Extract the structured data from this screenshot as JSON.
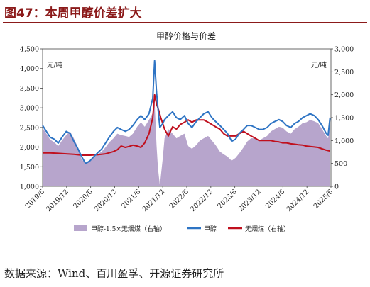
{
  "figure": {
    "title": "图47：本周甲醇价差扩大",
    "source": "数据来源：Wind、百川盈孚、开源证券研究所"
  },
  "colors": {
    "title": "#8b1a1a",
    "spread": "#b7a5cc",
    "methanol": "#2e74c4",
    "coal": "#c0101e"
  },
  "chart_data": {
    "type": "line",
    "title": "甲醇价格与价差",
    "y_left": {
      "min": 1000,
      "max": 4500,
      "step": 500,
      "unit_label": "元/吨",
      "ticks": [
        "1,000",
        "1,500",
        "2,000",
        "2,500",
        "3,000",
        "3,500",
        "4,000",
        "4,500"
      ]
    },
    "y_right": {
      "min": 0,
      "max": 3000,
      "step": 500,
      "unit_label": "元/吨",
      "ticks": [
        "0",
        "500",
        "1,000",
        "1,500",
        "2,000",
        "2,500",
        "3,000"
      ]
    },
    "x_ticks": [
      "2019/6",
      "2019/12",
      "2020/6",
      "2020/12",
      "2021/6",
      "2021/12",
      "2022/6",
      "2022/12",
      "2023/6",
      "2023/12",
      "2024/6",
      "2024/12",
      "2025/6"
    ],
    "legend_position": "bottom",
    "series": [
      {
        "name": "甲醇-1.5×无烟煤（右轴）",
        "type": "area",
        "axis": "right",
        "points": [
          [
            2019.42,
            1280
          ],
          [
            2019.5,
            1150
          ],
          [
            2019.58,
            1020
          ],
          [
            2019.67,
            960
          ],
          [
            2019.75,
            880
          ],
          [
            2019.83,
            1000
          ],
          [
            2019.92,
            1120
          ],
          [
            2020.0,
            1200
          ],
          [
            2020.08,
            1050
          ],
          [
            2020.17,
            850
          ],
          [
            2020.25,
            580
          ],
          [
            2020.33,
            520
          ],
          [
            2020.42,
            560
          ],
          [
            2020.5,
            620
          ],
          [
            2020.58,
            700
          ],
          [
            2020.67,
            760
          ],
          [
            2020.75,
            850
          ],
          [
            2020.83,
            960
          ],
          [
            2020.92,
            1050
          ],
          [
            2021.0,
            1150
          ],
          [
            2021.08,
            1120
          ],
          [
            2021.17,
            1100
          ],
          [
            2021.25,
            1080
          ],
          [
            2021.33,
            1150
          ],
          [
            2021.42,
            1300
          ],
          [
            2021.5,
            1400
          ],
          [
            2021.58,
            1300
          ],
          [
            2021.67,
            1450
          ],
          [
            2021.75,
            1600
          ],
          [
            2021.79,
            1850
          ],
          [
            2021.83,
            900
          ],
          [
            2021.86,
            400
          ],
          [
            2021.9,
            20
          ],
          [
            2021.96,
            600
          ],
          [
            2022.0,
            1050
          ],
          [
            2022.08,
            1250
          ],
          [
            2022.17,
            1150
          ],
          [
            2022.25,
            1050
          ],
          [
            2022.33,
            1100
          ],
          [
            2022.42,
            1150
          ],
          [
            2022.5,
            880
          ],
          [
            2022.58,
            820
          ],
          [
            2022.67,
            900
          ],
          [
            2022.75,
            1000
          ],
          [
            2022.83,
            1050
          ],
          [
            2022.92,
            1100
          ],
          [
            2023.0,
            1000
          ],
          [
            2023.08,
            900
          ],
          [
            2023.17,
            760
          ],
          [
            2023.25,
            700
          ],
          [
            2023.33,
            650
          ],
          [
            2023.42,
            560
          ],
          [
            2023.5,
            620
          ],
          [
            2023.58,
            720
          ],
          [
            2023.67,
            850
          ],
          [
            2023.75,
            980
          ],
          [
            2023.83,
            1050
          ],
          [
            2023.92,
            1050
          ],
          [
            2024.0,
            1000
          ],
          [
            2024.08,
            1050
          ],
          [
            2024.17,
            1100
          ],
          [
            2024.25,
            1200
          ],
          [
            2024.33,
            1250
          ],
          [
            2024.42,
            1300
          ],
          [
            2024.5,
            1280
          ],
          [
            2024.58,
            1200
          ],
          [
            2024.67,
            1150
          ],
          [
            2024.75,
            1250
          ],
          [
            2024.83,
            1300
          ],
          [
            2024.92,
            1380
          ],
          [
            2025.0,
            1400
          ],
          [
            2025.08,
            1450
          ],
          [
            2025.17,
            1420
          ],
          [
            2025.25,
            1380
          ],
          [
            2025.33,
            1250
          ],
          [
            2025.42,
            1100
          ],
          [
            2025.46,
            1050
          ],
          [
            2025.5,
            1380
          ]
        ]
      },
      {
        "name": "甲醇",
        "type": "line",
        "axis": "left",
        "points": [
          [
            2019.42,
            2550
          ],
          [
            2019.5,
            2400
          ],
          [
            2019.58,
            2250
          ],
          [
            2019.67,
            2200
          ],
          [
            2019.75,
            2100
          ],
          [
            2019.83,
            2250
          ],
          [
            2019.92,
            2400
          ],
          [
            2020.0,
            2350
          ],
          [
            2020.08,
            2150
          ],
          [
            2020.17,
            1950
          ],
          [
            2020.25,
            1750
          ],
          [
            2020.33,
            1580
          ],
          [
            2020.42,
            1650
          ],
          [
            2020.5,
            1750
          ],
          [
            2020.58,
            1850
          ],
          [
            2020.67,
            1950
          ],
          [
            2020.75,
            2100
          ],
          [
            2020.83,
            2250
          ],
          [
            2020.92,
            2400
          ],
          [
            2021.0,
            2500
          ],
          [
            2021.08,
            2450
          ],
          [
            2021.17,
            2400
          ],
          [
            2021.25,
            2450
          ],
          [
            2021.33,
            2550
          ],
          [
            2021.42,
            2700
          ],
          [
            2021.5,
            2800
          ],
          [
            2021.58,
            2700
          ],
          [
            2021.67,
            2850
          ],
          [
            2021.75,
            3250
          ],
          [
            2021.79,
            4200
          ],
          [
            2021.83,
            3400
          ],
          [
            2021.86,
            3000
          ],
          [
            2021.9,
            2500
          ],
          [
            2021.96,
            2600
          ],
          [
            2022.0,
            2700
          ],
          [
            2022.08,
            2800
          ],
          [
            2022.17,
            2900
          ],
          [
            2022.25,
            2750
          ],
          [
            2022.33,
            2700
          ],
          [
            2022.42,
            2800
          ],
          [
            2022.5,
            2600
          ],
          [
            2022.58,
            2500
          ],
          [
            2022.67,
            2650
          ],
          [
            2022.75,
            2750
          ],
          [
            2022.83,
            2850
          ],
          [
            2022.92,
            2900
          ],
          [
            2023.0,
            2750
          ],
          [
            2023.08,
            2650
          ],
          [
            2023.17,
            2550
          ],
          [
            2023.25,
            2450
          ],
          [
            2023.33,
            2350
          ],
          [
            2023.42,
            2150
          ],
          [
            2023.5,
            2200
          ],
          [
            2023.58,
            2350
          ],
          [
            2023.67,
            2450
          ],
          [
            2023.75,
            2550
          ],
          [
            2023.83,
            2550
          ],
          [
            2023.92,
            2500
          ],
          [
            2024.0,
            2450
          ],
          [
            2024.08,
            2450
          ],
          [
            2024.17,
            2500
          ],
          [
            2024.25,
            2600
          ],
          [
            2024.33,
            2650
          ],
          [
            2024.42,
            2700
          ],
          [
            2024.5,
            2650
          ],
          [
            2024.58,
            2550
          ],
          [
            2024.67,
            2500
          ],
          [
            2024.75,
            2600
          ],
          [
            2024.83,
            2650
          ],
          [
            2024.92,
            2750
          ],
          [
            2025.0,
            2800
          ],
          [
            2025.08,
            2850
          ],
          [
            2025.17,
            2800
          ],
          [
            2025.25,
            2700
          ],
          [
            2025.33,
            2550
          ],
          [
            2025.42,
            2350
          ],
          [
            2025.46,
            2300
          ],
          [
            2025.5,
            2750
          ]
        ]
      },
      {
        "name": "无烟煤（右轴）",
        "type": "line",
        "axis": "right",
        "points": [
          [
            2019.42,
            730
          ],
          [
            2019.58,
            730
          ],
          [
            2019.75,
            720
          ],
          [
            2019.92,
            710
          ],
          [
            2020.08,
            700
          ],
          [
            2020.25,
            680
          ],
          [
            2020.42,
            680
          ],
          [
            2020.58,
            690
          ],
          [
            2020.75,
            710
          ],
          [
            2020.92,
            760
          ],
          [
            2021.0,
            800
          ],
          [
            2021.08,
            880
          ],
          [
            2021.17,
            850
          ],
          [
            2021.25,
            870
          ],
          [
            2021.33,
            900
          ],
          [
            2021.42,
            880
          ],
          [
            2021.5,
            850
          ],
          [
            2021.58,
            950
          ],
          [
            2021.67,
            1150
          ],
          [
            2021.75,
            1500
          ],
          [
            2021.79,
            2000
          ],
          [
            2021.83,
            1800
          ],
          [
            2021.88,
            1650
          ],
          [
            2021.92,
            1500
          ],
          [
            2022.0,
            1250
          ],
          [
            2022.08,
            1100
          ],
          [
            2022.17,
            1300
          ],
          [
            2022.25,
            1250
          ],
          [
            2022.33,
            1350
          ],
          [
            2022.42,
            1400
          ],
          [
            2022.5,
            1450
          ],
          [
            2022.58,
            1400
          ],
          [
            2022.67,
            1450
          ],
          [
            2022.75,
            1450
          ],
          [
            2022.83,
            1450
          ],
          [
            2022.92,
            1400
          ],
          [
            2023.0,
            1350
          ],
          [
            2023.08,
            1300
          ],
          [
            2023.17,
            1250
          ],
          [
            2023.25,
            1150
          ],
          [
            2023.33,
            1100
          ],
          [
            2023.42,
            1100
          ],
          [
            2023.5,
            1100
          ],
          [
            2023.58,
            1150
          ],
          [
            2023.67,
            1200
          ],
          [
            2023.75,
            1150
          ],
          [
            2023.83,
            1100
          ],
          [
            2023.92,
            1050
          ],
          [
            2024.0,
            1000
          ],
          [
            2024.08,
            1000
          ],
          [
            2024.17,
            1000
          ],
          [
            2024.25,
            1000
          ],
          [
            2024.33,
            980
          ],
          [
            2024.42,
            970
          ],
          [
            2024.5,
            950
          ],
          [
            2024.58,
            950
          ],
          [
            2024.67,
            930
          ],
          [
            2024.75,
            920
          ],
          [
            2024.83,
            910
          ],
          [
            2024.92,
            900
          ],
          [
            2025.0,
            880
          ],
          [
            2025.08,
            870
          ],
          [
            2025.17,
            860
          ],
          [
            2025.25,
            850
          ],
          [
            2025.33,
            820
          ],
          [
            2025.42,
            790
          ],
          [
            2025.5,
            770
          ]
        ]
      }
    ]
  }
}
